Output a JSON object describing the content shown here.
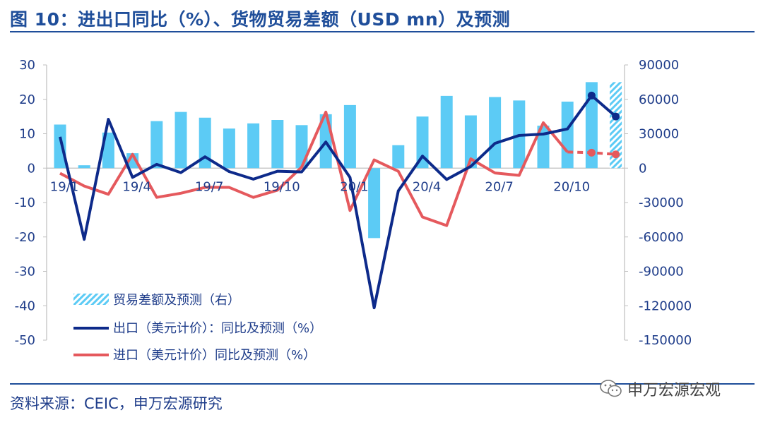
{
  "header": {
    "title": "图 10：进出口同比（%）、货物贸易差额（USD mn）及预测"
  },
  "footer": {
    "source": "资料来源：CEIC，申万宏源研究",
    "watermark": "申万宏源宏观"
  },
  "colors": {
    "bar": "#5ccbf5",
    "export": "#0d2a8a",
    "import": "#e5595d",
    "text": "#1f3d8a"
  },
  "chart_data": {
    "type": "bar+line",
    "categories": [
      "19/1",
      "19/2",
      "19/3",
      "19/4",
      "19/5",
      "19/6",
      "19/7",
      "19/8",
      "19/9",
      "19/10",
      "19/11",
      "19/12",
      "20/1",
      "20/2",
      "20/3",
      "20/4",
      "20/5",
      "20/6",
      "20/7",
      "20/8",
      "20/9",
      "20/10",
      "20/11",
      "20/12"
    ],
    "x_tick_labels": [
      "19/1",
      "19/4",
      "19/7",
      "19/10",
      "20/1",
      "20/4",
      "20/7",
      "20/10"
    ],
    "x_tick_indices": [
      0,
      3,
      6,
      9,
      12,
      15,
      18,
      21
    ],
    "left_axis": {
      "min": -50,
      "max": 30,
      "step": 10,
      "ticks": [
        "30",
        "20",
        "10",
        "0",
        "-10",
        "-20",
        "-30",
        "-40",
        "-50"
      ]
    },
    "right_axis": {
      "min": -150000,
      "max": 90000,
      "step": 30000,
      "ticks": [
        "90000",
        "60000",
        "30000",
        "0",
        "-30000",
        "-60000",
        "-90000",
        "-120000",
        "-150000"
      ]
    },
    "series": [
      {
        "name": "贸易差额及预测（右）",
        "type": "bar",
        "axis": "right",
        "values": [
          38000,
          2500,
          31000,
          13000,
          41000,
          49000,
          44000,
          34500,
          39000,
          42000,
          37500,
          47000,
          55000,
          -61000,
          20000,
          45000,
          63000,
          46000,
          62000,
          59000,
          37000,
          58000,
          75000,
          75000
        ],
        "forecast_from_index": 23
      },
      {
        "name": "出口（美元计价）：同比及预测（%）",
        "type": "line",
        "axis": "left",
        "values": [
          9.1,
          -20.7,
          14.2,
          -2.7,
          1.1,
          -1.3,
          3.3,
          -1.0,
          -3.2,
          -0.9,
          -1.1,
          7.6,
          -2.7,
          -40.6,
          -6.6,
          3.5,
          -3.3,
          0.5,
          7.2,
          9.5,
          9.9,
          11.4,
          21.1,
          15.0
        ],
        "marker_indices": [
          22,
          23
        ]
      },
      {
        "name": "进口（美元计价）同比及预测（%）",
        "type": "line",
        "axis": "left",
        "values": [
          -1.5,
          -5.2,
          -7.6,
          4.0,
          -8.5,
          -7.3,
          -5.6,
          -5.6,
          -8.5,
          -6.4,
          0.3,
          16.3,
          -12.3,
          2.4,
          -0.9,
          -14.2,
          -16.7,
          2.7,
          -1.4,
          -2.1,
          13.2,
          4.7,
          4.5,
          4.0
        ],
        "forecast_from_index": 21,
        "marker_indices": [
          22,
          23
        ]
      }
    ]
  }
}
